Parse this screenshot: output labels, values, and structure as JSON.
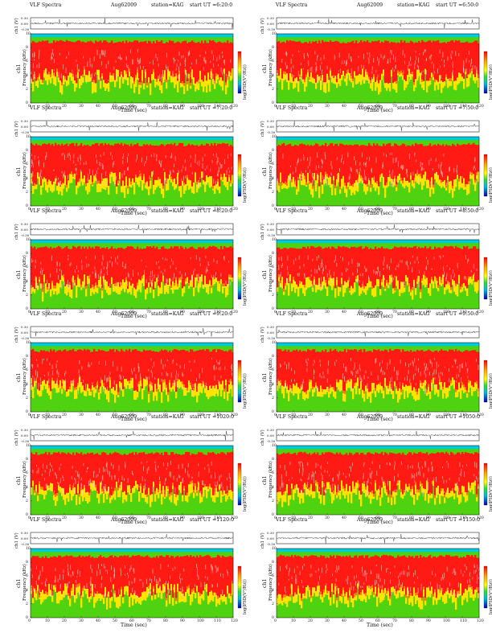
{
  "page": {
    "title_prefix": "VLF Spectra",
    "date": "Aug62009",
    "station": "station=KAG"
  },
  "labels": {
    "ch1_axis": "ch1 (V)",
    "freq_axis_ch": "ch1",
    "freq_axis": "Frequency (kHz)",
    "time_axis": "Time (sec)",
    "colorbar": "log(PSD(V²/Hz))"
  },
  "ticks": {
    "time": [
      "0",
      "10",
      "20",
      "30",
      "40",
      "50",
      "60",
      "70",
      "80",
      "90",
      "100",
      "110",
      "120"
    ],
    "freq": [
      "0",
      "2",
      "4",
      "6",
      "8",
      "10"
    ],
    "amp": [
      "0.30",
      "0.00",
      "-0.30"
    ]
  },
  "colors": {
    "band_red": "#ff1a14",
    "band_orange": "#ff7a10",
    "band_yellow": "#ffe400",
    "band_green": "#4fd20f",
    "band_cyan": "#00ccd8",
    "colorbar_top": "#ff0000",
    "colorbar_bottom": "#0000aa"
  },
  "panels": [
    {
      "start_ut": "start  UT =6:20:0"
    },
    {
      "start_ut": "start  UT =6:50:0"
    },
    {
      "start_ut": "start  UT =7:20:0"
    },
    {
      "start_ut": "start  UT =7:50:0"
    },
    {
      "start_ut": "start  UT =8:20:0"
    },
    {
      "start_ut": "start  UT =8:50:0"
    },
    {
      "start_ut": "start  UT =9:20:0"
    },
    {
      "start_ut": "start  UT =9:50:0"
    },
    {
      "start_ut": "start  UT =1020:0"
    },
    {
      "start_ut": "start  UT =1050:0"
    },
    {
      "start_ut": "start  UT =1120:0"
    },
    {
      "start_ut": "start  UT =1150:0"
    }
  ],
  "chart_data": {
    "type": "heatmap",
    "description_axis_units": {
      "x": "Time (sec)",
      "y": "Frequency (kHz)"
    },
    "x_range": [
      0,
      120
    ],
    "y_range": [
      0,
      10
    ],
    "waveform_range": [
      -0.3,
      0.3
    ],
    "panels": [
      {
        "start": "6:20:0",
        "spectral_band_kHz": [
          3,
          9.5
        ]
      },
      {
        "start": "6:50:0",
        "spectral_band_kHz": [
          3,
          9.5
        ]
      },
      {
        "start": "7:20:0",
        "spectral_band_kHz": [
          3,
          9.5
        ]
      },
      {
        "start": "7:50:0",
        "spectral_band_kHz": [
          3,
          9.5
        ]
      },
      {
        "start": "8:20:0",
        "spectral_band_kHz": [
          3,
          9.5
        ]
      },
      {
        "start": "8:50:0",
        "spectral_band_kHz": [
          3,
          9.5
        ]
      },
      {
        "start": "9:20:0",
        "spectral_band_kHz": [
          3,
          9.5
        ]
      },
      {
        "start": "9:50:0",
        "spectral_band_kHz": [
          3,
          9.5
        ]
      },
      {
        "start": "1020:0",
        "spectral_band_kHz": [
          3,
          9.5
        ]
      },
      {
        "start": "1050:0",
        "spectral_band_kHz": [
          3,
          9.5
        ]
      },
      {
        "start": "1120:0",
        "spectral_band_kHz": [
          3,
          9.5
        ]
      },
      {
        "start": "1150:0",
        "spectral_band_kHz": [
          3,
          9.5
        ]
      }
    ]
  }
}
